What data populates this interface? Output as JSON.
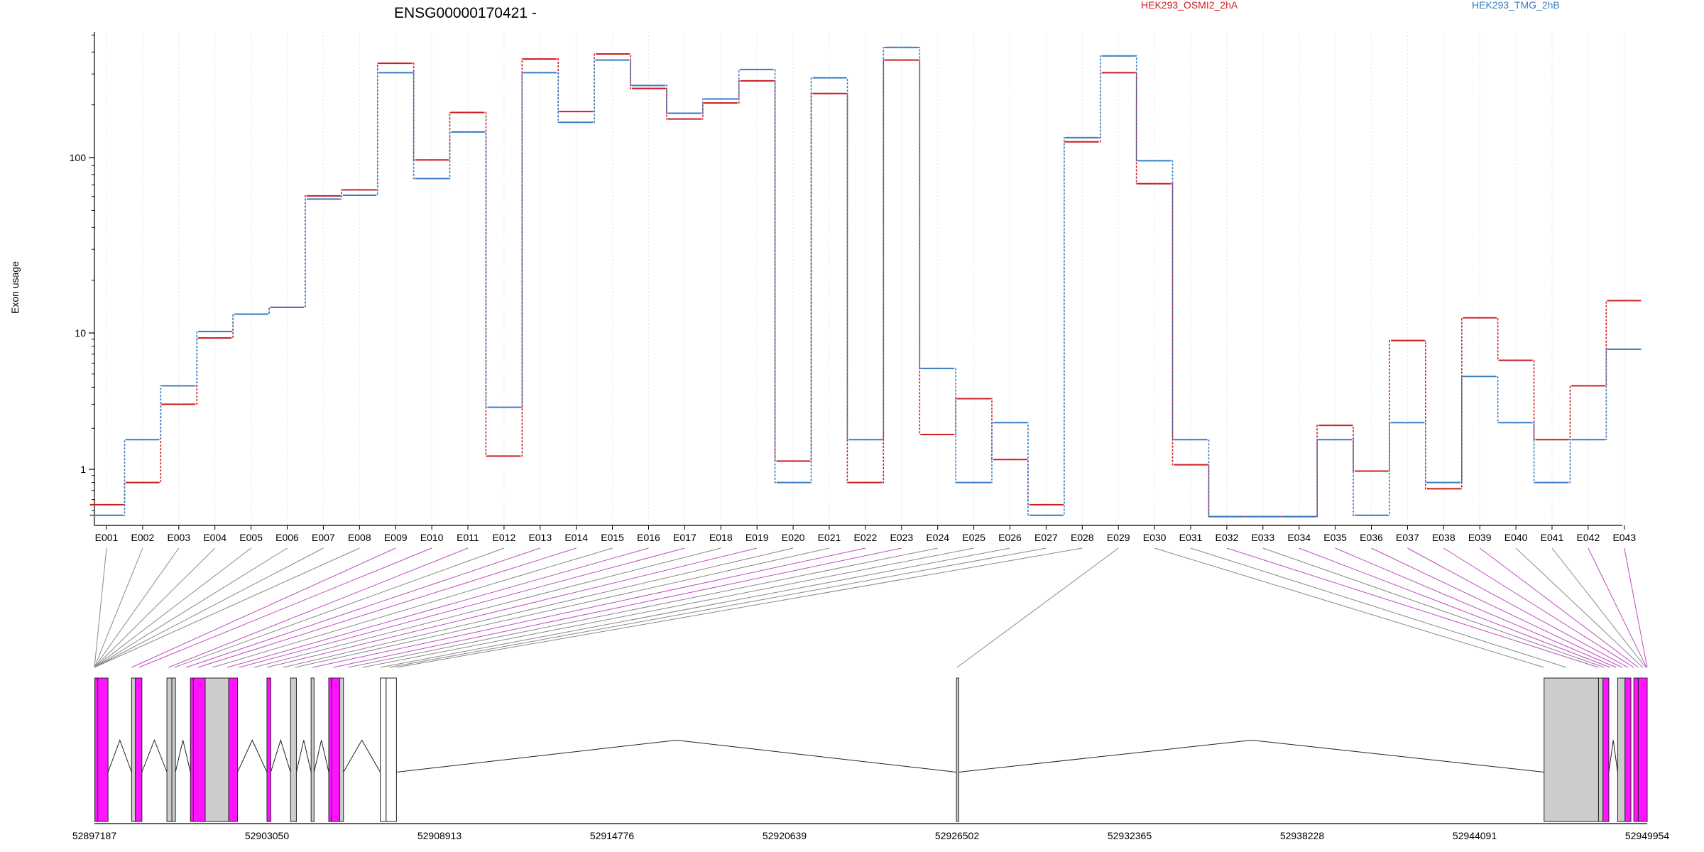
{
  "chart_data": {
    "type": "line",
    "title": "ENSG00000170421 -",
    "ylabel": "Exon usage",
    "yscale": "log",
    "ylim": [
      0.4,
      500
    ],
    "yticks": [
      1,
      10,
      100
    ],
    "grid": "vertical dotted lines at each exon",
    "legend_placement": "top",
    "categories": [
      "E001",
      "E002",
      "E003",
      "E004",
      "E005",
      "E006",
      "E007",
      "E008",
      "E009",
      "E010",
      "E011",
      "E012",
      "E013",
      "E014",
      "E015",
      "E016",
      "E017",
      "E018",
      "E019",
      "E020",
      "E021",
      "E022",
      "E023",
      "E024",
      "E025",
      "E026",
      "E027",
      "E028",
      "E029",
      "E030",
      "E031",
      "E032",
      "E033",
      "E034",
      "E035",
      "E036",
      "E037",
      "E038",
      "E039",
      "E040",
      "E041",
      "E042",
      "E043"
    ],
    "series": [
      {
        "name": "HEK293_OSMI2_2hA",
        "color": "#cc1f24",
        "values": [
          0.55,
          0.8,
          3.0,
          9.2,
          12.8,
          14.0,
          60.5,
          65.5,
          345,
          97,
          181,
          1.25,
          365,
          183,
          390,
          248,
          166,
          205,
          274,
          1.15,
          232,
          0.8,
          360,
          1.8,
          3.3,
          1.18,
          0.55,
          123,
          305,
          71,
          1.08,
          0.45,
          0.45,
          0.45,
          2.1,
          0.97,
          8.8,
          0.72,
          12.2,
          6.3,
          1.65,
          4.1,
          15.3
        ]
      },
      {
        "name": "HEK293_TMG_2hB",
        "color": "#3a7dc0",
        "values": [
          0.46,
          1.65,
          4.1,
          10.2,
          12.8,
          14.0,
          58.0,
          61.0,
          305,
          76,
          140,
          2.85,
          305,
          159,
          360,
          258,
          179,
          216,
          318,
          0.8,
          285,
          1.65,
          425,
          5.5,
          0.8,
          2.2,
          0.46,
          130,
          380,
          96,
          1.65,
          0.45,
          0.45,
          0.45,
          1.65,
          0.46,
          2.2,
          0.8,
          4.8,
          2.2,
          0.8,
          1.65,
          7.6
        ]
      }
    ],
    "gene_model": {
      "coordinate_ticks": [
        "52897187",
        "52903050",
        "52908913",
        "52914776",
        "52920639",
        "52926502",
        "52932365",
        "52938228",
        "52944091",
        "52949954"
      ],
      "range": [
        52897187,
        52949954
      ],
      "exons": [
        {
          "start": 52897200,
          "end": 52897300,
          "color": "#ff14ff"
        },
        {
          "start": 52897300,
          "end": 52897650,
          "color": "#ff14ff"
        },
        {
          "start": 52898450,
          "end": 52898580,
          "color": "#cccccc"
        },
        {
          "start": 52898580,
          "end": 52898800,
          "color": "#ff14ff"
        },
        {
          "start": 52899650,
          "end": 52899820,
          "color": "#cccccc"
        },
        {
          "start": 52899820,
          "end": 52899940,
          "color": "#cccccc"
        },
        {
          "start": 52900450,
          "end": 52900550,
          "color": "#ff14ff"
        },
        {
          "start": 52900550,
          "end": 52900950,
          "color": "#ff14ff"
        },
        {
          "start": 52900950,
          "end": 52901750,
          "color": "#cccccc"
        },
        {
          "start": 52901750,
          "end": 52902050,
          "color": "#ff14ff"
        },
        {
          "start": 52903050,
          "end": 52903180,
          "color": "#ff14ff"
        },
        {
          "start": 52903850,
          "end": 52904050,
          "color": "#cccccc"
        },
        {
          "start": 52904550,
          "end": 52904650,
          "color": "#cccccc"
        },
        {
          "start": 52905150,
          "end": 52905250,
          "color": "#ff14ff"
        },
        {
          "start": 52905250,
          "end": 52905520,
          "color": "#ff14ff"
        },
        {
          "start": 52905520,
          "end": 52905650,
          "color": "#cccccc"
        },
        {
          "start": 52906900,
          "end": 52907100,
          "color": "#ffffff"
        },
        {
          "start": 52907100,
          "end": 52907450,
          "color": "#ffffff"
        },
        {
          "start": 52926480,
          "end": 52926560,
          "color": "#cccccc"
        },
        {
          "start": 52946450,
          "end": 52948300,
          "color": "#cccccc"
        },
        {
          "start": 52948300,
          "end": 52948450,
          "color": "#cccccc"
        },
        {
          "start": 52948450,
          "end": 52948650,
          "color": "#ff14ff"
        },
        {
          "start": 52948950,
          "end": 52949200,
          "color": "#cccccc"
        },
        {
          "start": 52949200,
          "end": 52949400,
          "color": "#ff14ff"
        },
        {
          "start": 52949500,
          "end": 52949650,
          "color": "#ff14ff"
        },
        {
          "start": 52949650,
          "end": 52949954,
          "color": "#ff14ff"
        }
      ],
      "introns": [
        [
          52897650,
          52898450
        ],
        [
          52898800,
          52899650
        ],
        [
          52899940,
          52900450
        ],
        [
          52902050,
          52903050
        ],
        [
          52903180,
          52903850
        ],
        [
          52904050,
          52904550
        ],
        [
          52904650,
          52905150
        ],
        [
          52905650,
          52906900
        ],
        [
          52907450,
          52926480
        ],
        [
          52926560,
          52946450
        ],
        [
          52948650,
          52948950
        ]
      ],
      "exon_map": [
        {
          "pos": 52897187,
          "color": "#888888"
        },
        {
          "pos": 52897187,
          "color": "#888888"
        },
        {
          "pos": 52897187,
          "color": "#888888"
        },
        {
          "pos": 52897187,
          "color": "#888888"
        },
        {
          "pos": 52897187,
          "color": "#888888"
        },
        {
          "pos": 52897187,
          "color": "#888888"
        },
        {
          "pos": 52897187,
          "color": "#888888"
        },
        {
          "pos": 52897187,
          "color": "#888888"
        },
        {
          "pos": 52898450,
          "color": "#c04bc0"
        },
        {
          "pos": 52898700,
          "color": "#c04bc0"
        },
        {
          "pos": 52899700,
          "color": "#c04bc0"
        },
        {
          "pos": 52899900,
          "color": "#888888"
        },
        {
          "pos": 52900300,
          "color": "#c04bc0"
        },
        {
          "pos": 52900700,
          "color": "#c04bc0"
        },
        {
          "pos": 52901200,
          "color": "#888888"
        },
        {
          "pos": 52901700,
          "color": "#c04bc0"
        },
        {
          "pos": 52902100,
          "color": "#c04bc0"
        },
        {
          "pos": 52902600,
          "color": "#888888"
        },
        {
          "pos": 52903050,
          "color": "#c04bc0"
        },
        {
          "pos": 52903600,
          "color": "#888888"
        },
        {
          "pos": 52904000,
          "color": "#888888"
        },
        {
          "pos": 52904600,
          "color": "#c04bc0"
        },
        {
          "pos": 52905300,
          "color": "#c04bc0"
        },
        {
          "pos": 52905800,
          "color": "#888888"
        },
        {
          "pos": 52906300,
          "color": "#888888"
        },
        {
          "pos": 52906900,
          "color": "#888888"
        },
        {
          "pos": 52907200,
          "color": "#888888"
        },
        {
          "pos": 52907450,
          "color": "#888888"
        },
        {
          "pos": 52926502,
          "color": "#888888"
        },
        {
          "pos": 52946450,
          "color": "#888888"
        },
        {
          "pos": 52947200,
          "color": "#888888"
        },
        {
          "pos": 52948300,
          "color": "#c04bc0"
        },
        {
          "pos": 52948500,
          "color": "#888888"
        },
        {
          "pos": 52948700,
          "color": "#c04bc0"
        },
        {
          "pos": 52948900,
          "color": "#c04bc0"
        },
        {
          "pos": 52949100,
          "color": "#c04bc0"
        },
        {
          "pos": 52949300,
          "color": "#c04bc0"
        },
        {
          "pos": 52949500,
          "color": "#c04bc0"
        },
        {
          "pos": 52949650,
          "color": "#c04bc0"
        },
        {
          "pos": 52949800,
          "color": "#888888"
        },
        {
          "pos": 52949900,
          "color": "#888888"
        },
        {
          "pos": 52949930,
          "color": "#c04bc0"
        },
        {
          "pos": 52949954,
          "color": "#c04bc0"
        }
      ]
    }
  }
}
